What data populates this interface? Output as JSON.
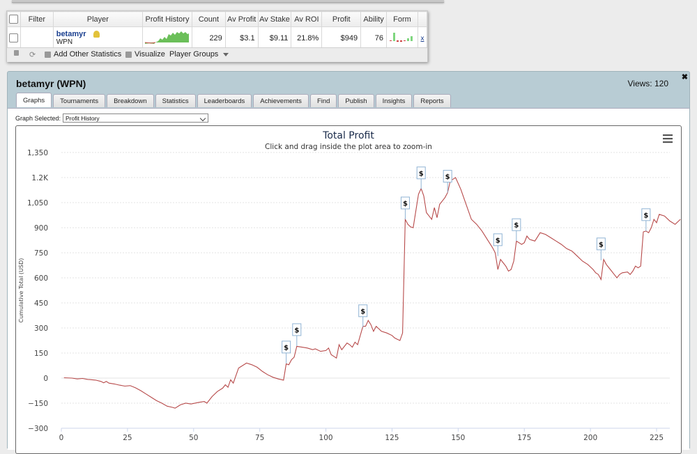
{
  "stats": {
    "headers": [
      "Filter",
      "Player",
      "Profit History",
      "Count",
      "Av Profit",
      "Av Stake",
      "Av ROI",
      "Profit",
      "Ability",
      "Form"
    ],
    "row": {
      "player_name": "betamyr",
      "player_site": "WPN",
      "count": "229",
      "av_profit": "$3.1",
      "av_stake": "$9.11",
      "av_roi": "21.8%",
      "profit": "$949",
      "ability": "76",
      "remove": "x"
    },
    "toolbar": {
      "add_stats": "Add Other Statistics",
      "visualize": "Visualize",
      "player_groups": "Player Groups"
    }
  },
  "panel": {
    "title": "betamyr (WPN)",
    "views": "Views: 120",
    "close": "✖",
    "tabs": [
      "Graphs",
      "Tournaments",
      "Breakdown",
      "Statistics",
      "Leaderboards",
      "Achievements",
      "Find",
      "Publish",
      "Insights",
      "Reports"
    ],
    "graph_selected_label": "Graph Selected:",
    "graph_selected_value": "Profit History"
  },
  "chart_data": {
    "type": "line",
    "title": "Total Profit",
    "subtitle": "Click and drag inside the plot area to zoom-in",
    "ylabel": "Cumulative Total (USD)",
    "xlabel": "",
    "xlim": [
      0,
      230
    ],
    "ylim": [
      -300,
      1350
    ],
    "yticks": [
      -300,
      -150,
      0,
      150,
      300,
      450,
      600,
      750,
      900,
      1050,
      1200,
      1350
    ],
    "ytick_labels": [
      "−300",
      "−150",
      "0",
      "150",
      "300",
      "450",
      "600",
      "750",
      "900",
      "1,050",
      "1.2K",
      "1,350"
    ],
    "xticks": [
      0,
      25,
      50,
      75,
      100,
      125,
      150,
      175,
      200,
      225
    ],
    "grid": true,
    "line_color": "#b74a4a",
    "series": [
      {
        "points": [
          [
            1,
            2
          ],
          [
            4,
            0
          ],
          [
            6,
            -5
          ],
          [
            8,
            -2
          ],
          [
            10,
            -8
          ],
          [
            13,
            -12
          ],
          [
            15,
            -20
          ],
          [
            16,
            -28
          ],
          [
            17,
            -20
          ],
          [
            18,
            -30
          ],
          [
            20,
            -35
          ],
          [
            22,
            -42
          ],
          [
            24,
            -48
          ],
          [
            26,
            -45
          ],
          [
            28,
            -58
          ],
          [
            30,
            -75
          ],
          [
            32,
            -95
          ],
          [
            34,
            -115
          ],
          [
            36,
            -135
          ],
          [
            38,
            -150
          ],
          [
            40,
            -168
          ],
          [
            42,
            -175
          ],
          [
            43,
            -180
          ],
          [
            45,
            -160
          ],
          [
            47,
            -150
          ],
          [
            49,
            -155
          ],
          [
            52,
            -145
          ],
          [
            54,
            -140
          ],
          [
            55,
            -150
          ],
          [
            57,
            -110
          ],
          [
            59,
            -80
          ],
          [
            61,
            -60
          ],
          [
            62,
            -40
          ],
          [
            63,
            -55
          ],
          [
            64,
            -10
          ],
          [
            65,
            -30
          ],
          [
            67,
            60
          ],
          [
            70,
            90
          ],
          [
            72,
            80
          ],
          [
            74,
            65
          ],
          [
            76,
            40
          ],
          [
            78,
            20
          ],
          [
            80,
            5
          ],
          [
            82,
            -5
          ],
          [
            84,
            -12
          ],
          [
            85,
            85
          ],
          [
            86,
            80
          ],
          [
            87,
            110
          ],
          [
            88,
            125
          ],
          [
            89,
            190
          ],
          [
            91,
            185
          ],
          [
            93,
            180
          ],
          [
            95,
            170
          ],
          [
            96,
            175
          ],
          [
            98,
            160
          ],
          [
            100,
            165
          ],
          [
            101,
            180
          ],
          [
            102,
            140
          ],
          [
            103,
            130
          ],
          [
            104,
            120
          ],
          [
            105,
            200
          ],
          [
            106,
            170
          ],
          [
            108,
            210
          ],
          [
            109,
            200
          ],
          [
            110,
            185
          ],
          [
            111,
            215
          ],
          [
            112,
            200
          ],
          [
            114,
            310
          ],
          [
            115,
            310
          ],
          [
            116,
            345
          ],
          [
            117,
            320
          ],
          [
            118,
            280
          ],
          [
            119,
            310
          ],
          [
            121,
            280
          ],
          [
            123,
            270
          ],
          [
            125,
            255
          ],
          [
            126,
            240
          ],
          [
            127,
            232
          ],
          [
            128,
            225
          ],
          [
            129,
            270
          ],
          [
            130,
            950
          ],
          [
            131,
            920
          ],
          [
            132,
            905
          ],
          [
            133,
            900
          ],
          [
            134,
            1000
          ],
          [
            135,
            1100
          ],
          [
            136,
            1135
          ],
          [
            137,
            1090
          ],
          [
            138,
            990
          ],
          [
            139,
            970
          ],
          [
            140,
            950
          ],
          [
            141,
            1020
          ],
          [
            142,
            960
          ],
          [
            143,
            1040
          ],
          [
            145,
            1080
          ],
          [
            146,
            1110
          ],
          [
            147,
            1180
          ],
          [
            149,
            1200
          ],
          [
            151,
            1130
          ],
          [
            153,
            1040
          ],
          [
            155,
            950
          ],
          [
            157,
            920
          ],
          [
            159,
            880
          ],
          [
            161,
            830
          ],
          [
            163,
            780
          ],
          [
            164,
            750
          ],
          [
            165,
            650
          ],
          [
            166,
            710
          ],
          [
            167,
            690
          ],
          [
            168,
            670
          ],
          [
            169,
            640
          ],
          [
            170,
            650
          ],
          [
            171,
            700
          ],
          [
            172,
            820
          ],
          [
            173,
            810
          ],
          [
            174,
            800
          ],
          [
            175,
            810
          ],
          [
            176,
            850
          ],
          [
            177,
            830
          ],
          [
            179,
            820
          ],
          [
            181,
            870
          ],
          [
            183,
            860
          ],
          [
            185,
            840
          ],
          [
            187,
            820
          ],
          [
            189,
            800
          ],
          [
            191,
            775
          ],
          [
            193,
            760
          ],
          [
            195,
            730
          ],
          [
            197,
            700
          ],
          [
            199,
            680
          ],
          [
            201,
            650
          ],
          [
            202,
            630
          ],
          [
            203,
            620
          ],
          [
            204,
            590
          ],
          [
            205,
            710
          ],
          [
            206,
            680
          ],
          [
            207,
            660
          ],
          [
            208,
            640
          ],
          [
            209,
            620
          ],
          [
            210,
            600
          ],
          [
            211,
            620
          ],
          [
            212,
            630
          ],
          [
            214,
            635
          ],
          [
            215,
            620
          ],
          [
            216,
            640
          ],
          [
            217,
            670
          ],
          [
            218,
            660
          ],
          [
            219,
            670
          ],
          [
            220,
            875
          ],
          [
            221,
            880
          ],
          [
            222,
            870
          ],
          [
            223,
            900
          ],
          [
            224,
            950
          ],
          [
            225,
            930
          ],
          [
            226,
            980
          ],
          [
            228,
            970
          ],
          [
            230,
            940
          ],
          [
            232,
            920
          ],
          [
            234,
            950
          ]
        ]
      }
    ],
    "deposit_markers": [
      {
        "x": 85,
        "y": 88,
        "label": "$"
      },
      {
        "x": 89,
        "y": 192,
        "label": "$"
      },
      {
        "x": 114,
        "y": 305,
        "label": "$"
      },
      {
        "x": 130,
        "y": 950,
        "label": "$"
      },
      {
        "x": 136,
        "y": 1130,
        "label": "$"
      },
      {
        "x": 146,
        "y": 1110,
        "label": "$"
      },
      {
        "x": 165,
        "y": 730,
        "label": "$"
      },
      {
        "x": 172,
        "y": 820,
        "label": "$"
      },
      {
        "x": 204,
        "y": 705,
        "label": "$"
      },
      {
        "x": 221,
        "y": 880,
        "label": "$"
      }
    ]
  }
}
